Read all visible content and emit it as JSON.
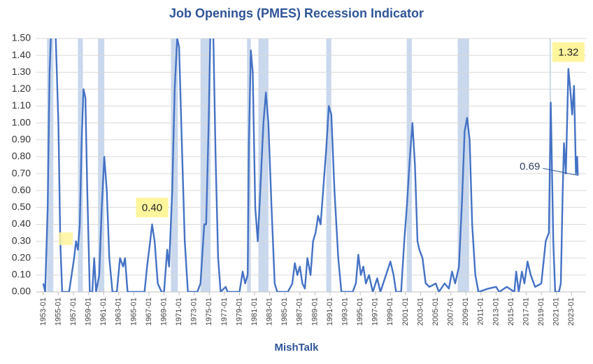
{
  "chart_data": {
    "type": "line",
    "title": "Job Openings (PMES) Recession Indicator",
    "xlabel": "MishTalk",
    "color": "#4472c4",
    "shade_color": "#c9d8ec",
    "grid": true,
    "x": [
      "1953-01",
      "1953-04",
      "1953-08",
      "1953-11",
      "1954-02",
      "1954-08",
      "1955-01",
      "1955-04",
      "1955-07",
      "1956-06",
      "1956-10",
      "1957-02",
      "1957-05",
      "1957-08",
      "1957-11",
      "1958-02",
      "1958-05",
      "1958-08",
      "1958-11",
      "1959-03",
      "1959-07",
      "1959-10",
      "1960-01",
      "1960-06",
      "1960-10",
      "1961-02",
      "1961-06",
      "1961-10",
      "1962-03",
      "1962-10",
      "1963-03",
      "1963-08",
      "1963-11",
      "1964-03",
      "1966-01",
      "1966-06",
      "1966-10",
      "1967-03",
      "1967-06",
      "1967-10",
      "1968-03",
      "1968-09",
      "1969-01",
      "1969-06",
      "1969-09",
      "1970-02",
      "1970-06",
      "1970-10",
      "1971-01",
      "1971-06",
      "1971-10",
      "1972-03",
      "1973-06",
      "1973-11",
      "1974-05",
      "1974-08",
      "1974-12",
      "1975-03",
      "1975-07",
      "1975-11",
      "1976-03",
      "1976-07",
      "1977-03",
      "1977-06",
      "1979-01",
      "1979-06",
      "1979-10",
      "1980-02",
      "1980-04",
      "1980-07",
      "1980-10",
      "1981-02",
      "1981-06",
      "1981-10",
      "1982-03",
      "1982-07",
      "1982-11",
      "1983-04",
      "1983-09",
      "1984-01",
      "1985-06",
      "1986-01",
      "1986-05",
      "1986-09",
      "1987-01",
      "1987-05",
      "1987-09",
      "1988-01",
      "1988-06",
      "1988-10",
      "1989-02",
      "1989-06",
      "1989-10",
      "1990-02",
      "1990-07",
      "1990-11",
      "1991-03",
      "1991-08",
      "1992-02",
      "1992-07",
      "1994-01",
      "1994-06",
      "1994-10",
      "1995-02",
      "1995-06",
      "1995-10",
      "1996-03",
      "1996-09",
      "1997-04",
      "1997-09",
      "1998-06",
      "1999-01",
      "1999-06",
      "1999-10",
      "2000-06",
      "2000-11",
      "2001-03",
      "2001-08",
      "2001-12",
      "2002-04",
      "2002-08",
      "2002-11",
      "2003-04",
      "2003-09",
      "2004-03",
      "2005-01",
      "2005-06",
      "2006-03",
      "2006-10",
      "2007-03",
      "2007-08",
      "2008-02",
      "2008-07",
      "2008-11",
      "2009-03",
      "2009-07",
      "2009-11",
      "2010-04",
      "2010-09",
      "2012-01",
      "2013-01",
      "2013-06",
      "2014-06",
      "2015-06",
      "2015-09",
      "2016-01",
      "2016-06",
      "2016-10",
      "2017-03",
      "2017-08",
      "2018-03",
      "2019-01",
      "2019-08",
      "2020-01",
      "2020-04",
      "2020-08",
      "2020-11",
      "2021-05",
      "2021-08",
      "2021-11",
      "2022-01",
      "2022-04",
      "2022-08",
      "2022-11",
      "2023-02",
      "2023-05",
      "2023-08",
      "2023-10",
      "2023-11"
    ],
    "values": [
      0.05,
      0.0,
      0.5,
      1.3,
      1.6,
      1.6,
      1.0,
      0.3,
      0.0,
      0.0,
      0.1,
      0.2,
      0.3,
      0.25,
      0.4,
      0.9,
      1.2,
      1.15,
      0.6,
      0.0,
      0.0,
      0.2,
      0.0,
      0.1,
      0.5,
      0.8,
      0.6,
      0.2,
      0.0,
      0.0,
      0.2,
      0.15,
      0.2,
      0.0,
      0.0,
      0.0,
      0.15,
      0.3,
      0.4,
      0.3,
      0.05,
      0.0,
      0.0,
      0.25,
      0.15,
      0.6,
      1.2,
      1.5,
      1.45,
      0.8,
      0.3,
      0.0,
      0.0,
      0.05,
      0.4,
      0.4,
      1.0,
      1.6,
      1.6,
      0.8,
      0.2,
      0.0,
      0.03,
      0.0,
      0.0,
      0.12,
      0.05,
      0.1,
      0.9,
      1.43,
      1.3,
      0.5,
      0.3,
      0.6,
      1.0,
      1.18,
      1.0,
      0.5,
      0.05,
      0.0,
      0.0,
      0.05,
      0.17,
      0.1,
      0.15,
      0.05,
      0.02,
      0.2,
      0.1,
      0.3,
      0.35,
      0.45,
      0.4,
      0.6,
      0.85,
      1.1,
      1.05,
      0.6,
      0.2,
      0.0,
      0.0,
      0.05,
      0.22,
      0.1,
      0.15,
      0.05,
      0.1,
      0.0,
      0.08,
      0.0,
      0.1,
      0.18,
      0.1,
      0.0,
      0.0,
      0.3,
      0.5,
      0.8,
      1.0,
      0.75,
      0.3,
      0.25,
      0.2,
      0.05,
      0.03,
      0.05,
      0.0,
      0.05,
      0.02,
      0.12,
      0.05,
      0.15,
      0.55,
      0.95,
      1.03,
      0.9,
      0.4,
      0.1,
      0.0,
      0.02,
      0.03,
      0.0,
      0.03,
      0.0,
      0.12,
      0.0,
      0.12,
      0.05,
      0.18,
      0.1,
      0.03,
      0.05,
      0.3,
      0.35,
      1.12,
      0.3,
      0.0,
      0.0,
      0.05,
      0.6,
      0.88,
      0.7,
      1.32,
      1.2,
      1.05,
      1.22,
      0.7,
      0.8,
      0.69
    ],
    "recessions": [
      [
        "1953-07",
        "1954-05"
      ],
      [
        "1957-08",
        "1958-04"
      ],
      [
        "1960-04",
        "1961-02"
      ],
      [
        "1969-12",
        "1970-11"
      ],
      [
        "1973-11",
        "1975-03"
      ],
      [
        "1980-01",
        "1980-07"
      ],
      [
        "1981-07",
        "1982-11"
      ],
      [
        "1990-07",
        "1991-03"
      ],
      [
        "2001-03",
        "2001-11"
      ],
      [
        "2007-12",
        "2009-06"
      ],
      [
        "2020-02",
        "2020-04"
      ]
    ],
    "xlim": [
      "1952-02",
      "2024-12"
    ],
    "xticks": [
      "1953-01",
      "1955-01",
      "1957-01",
      "1959-01",
      "1961-01",
      "1963-01",
      "1965-01",
      "1967-01",
      "1969-01",
      "1971-01",
      "1973-01",
      "1975-01",
      "1977-01",
      "1979-01",
      "1981-01",
      "1983-01",
      "1985-01",
      "1987-01",
      "1989-01",
      "1991-01",
      "1993-01",
      "1995-01",
      "1997-01",
      "1999-01",
      "2001-01",
      "2003-01",
      "2005-01",
      "2007-01",
      "2009-01",
      "2011-01",
      "2013-01",
      "2015-01",
      "2017-01",
      "2019-01",
      "2021-01",
      "2023-01"
    ],
    "ylim": [
      0,
      1.5
    ],
    "yticks": [
      {
        "value": 0,
        "label": "0.00"
      },
      {
        "value": 0.1,
        "label": "0.10"
      },
      {
        "value": 0.2,
        "label": "0.20"
      },
      {
        "value": 0.3,
        "label": "0.30"
      },
      {
        "value": 0.4,
        "label": "0.40"
      },
      {
        "value": 0.5,
        "label": "0.50"
      },
      {
        "value": 0.6,
        "label": "0.60"
      },
      {
        "value": 0.7,
        "label": "0.70"
      },
      {
        "value": 0.8,
        "label": "0.80"
      },
      {
        "value": 0.9,
        "label": "0.90"
      },
      {
        "value": 1.0,
        "label": "1.00"
      },
      {
        "value": 1.1,
        "label": "1.10"
      },
      {
        "value": 1.2,
        "label": "1.20"
      },
      {
        "value": 1.3,
        "label": "1.30"
      },
      {
        "value": 1.4,
        "label": "1.40"
      },
      {
        "value": 1.5,
        "label": "1.50"
      }
    ],
    "annotations": [
      {
        "label": "1.32",
        "value": 1.32,
        "x": "2022-08",
        "highlight": true
      },
      {
        "label": "0.40",
        "value": 0.4,
        "x": "1967-06",
        "highlight": true
      },
      {
        "label": "0.69",
        "value": 0.69,
        "x": "2023-11",
        "highlight": false
      }
    ]
  }
}
